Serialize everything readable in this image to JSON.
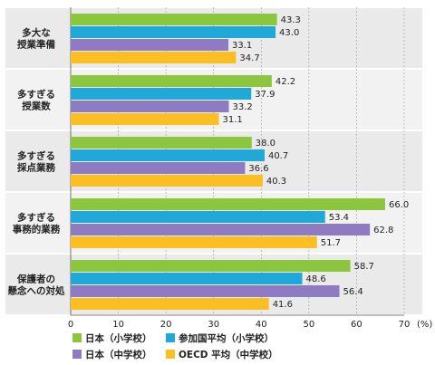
{
  "chart_data": {
    "type": "bar",
    "orientation": "horizontal",
    "categories": [
      [
        "多大な",
        "授業準備"
      ],
      [
        "多すぎる",
        "授業数"
      ],
      [
        "多すぎる",
        "採点業務"
      ],
      [
        "多すぎる",
        "事務的業務"
      ],
      [
        "保護者の",
        "懸念への対処"
      ]
    ],
    "series": [
      {
        "name": "日本（小学校）",
        "color": "#8cc63f",
        "values": [
          43.3,
          42.2,
          38.0,
          66.0,
          58.7
        ]
      },
      {
        "name": "参加国平均（小学校）",
        "color": "#1fa8d8",
        "values": [
          43.0,
          37.9,
          40.7,
          53.4,
          48.6
        ]
      },
      {
        "name": "日本（中学校）",
        "color": "#8e7cc3",
        "values": [
          33.1,
          33.2,
          36.6,
          62.8,
          56.4
        ]
      },
      {
        "name": "OECD 平均（中学校）",
        "color": "#fbbf24",
        "values": [
          34.7,
          31.1,
          40.3,
          51.7,
          41.6
        ]
      }
    ],
    "value_labels": [
      [
        "43.3",
        "43.0",
        "33.1",
        "34.7"
      ],
      [
        "42.2",
        "37.9",
        "33.2",
        "31.1"
      ],
      [
        "38.0",
        "40.7",
        "36.6",
        "40.3"
      ],
      [
        "66.0",
        "53.4",
        "62.8",
        "51.7"
      ],
      [
        "58.7",
        "48.6",
        "56.4",
        "41.6"
      ]
    ],
    "xlim": [
      0,
      70
    ],
    "xticks": [
      "0",
      "10",
      "20",
      "30",
      "40",
      "50",
      "60",
      "70"
    ],
    "unit": "(%)",
    "grid": true,
    "legend_position": "bottom"
  }
}
